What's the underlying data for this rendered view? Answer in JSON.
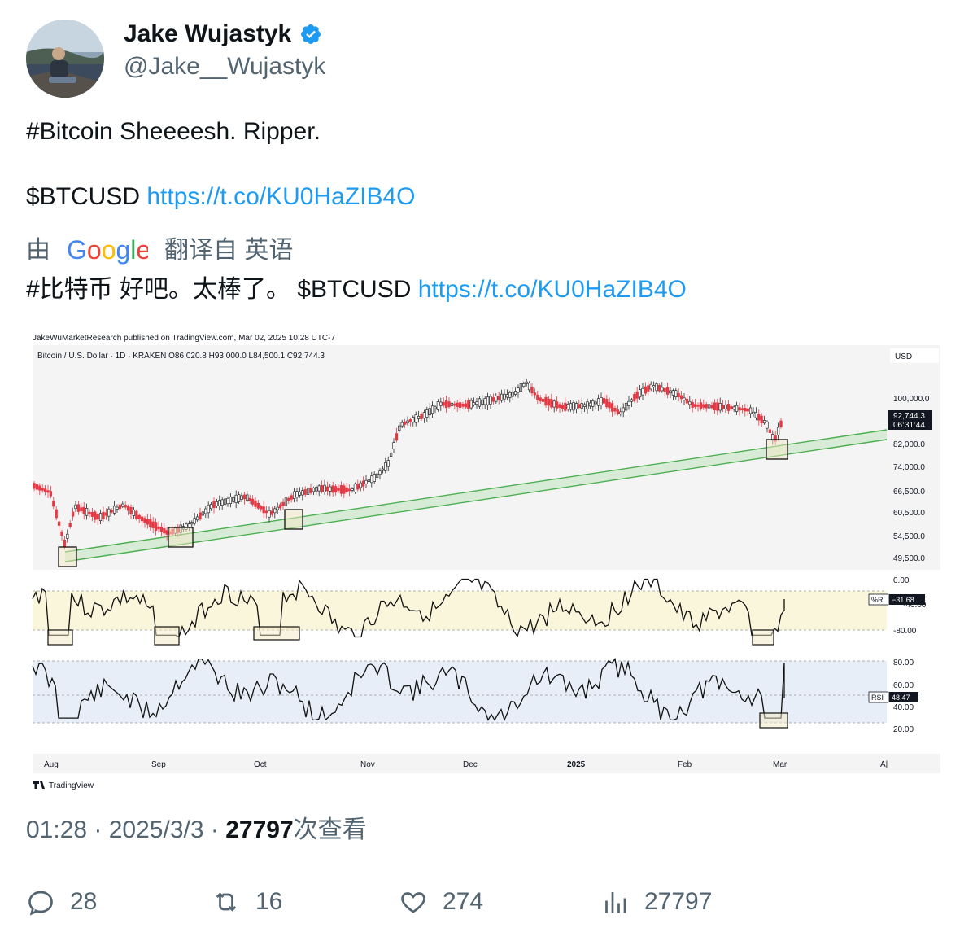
{
  "author": {
    "name": "Jake Wujastyk",
    "handle": "@Jake__Wujastyk",
    "verified": true
  },
  "tweet": {
    "line1": "#Bitcoin Sheeeesh. Ripper.",
    "line2_prefix": "$BTCUSD ",
    "link": "https://t.co/KU0HaZIB4O"
  },
  "translation": {
    "by": "由",
    "provider": "Google",
    "label": "翻译自 英语",
    "text_prefix": "#比特币 好吧。太棒了。 $BTCUSD ",
    "link": "https://t.co/KU0HaZIB4O"
  },
  "chart": {
    "header": "JakeWuMarketResearch published on TradingView.com, Mar 02, 2025 10:28 UTC-7",
    "symbol_line": "Bitcoin / U.S. Dollar · 1D · KRAKEN  O86,020.8  H93,000.0  L84,500.1  C92,744.3",
    "currency": "USD",
    "price_ticks": [
      "100,000.0",
      "82,000.0",
      "74,000.0",
      "66,500.0",
      "60,500.0",
      "54,500.0",
      "49,500.0"
    ],
    "last_price": "92,744.3",
    "countdown": "06:31:44",
    "wr_ticks": [
      "0.00",
      "-80.00"
    ],
    "wr_label": "%R",
    "wr_value": "−31.68",
    "wr_partial": "-40.00",
    "rsi_ticks": [
      "80.00",
      "60.00",
      "40.00",
      "20.00"
    ],
    "rsi_label": "RSI",
    "rsi_value": "48.47",
    "months": [
      "Aug",
      "Sep",
      "Oct",
      "Nov",
      "Dec",
      "2025",
      "Feb",
      "Mar",
      "A|"
    ],
    "brand": "TradingView",
    "colors": {
      "up": "#2b2b2b",
      "down": "#e53945",
      "channel": "#4caf50",
      "wr_band": "#faf6dc",
      "rsi_band": "#e8eef8"
    }
  },
  "meta": {
    "time": "01:28",
    "date": "2025/3/3",
    "views": "27797",
    "views_label": "次查看"
  },
  "actions": {
    "replies": "28",
    "retweets": "16",
    "likes": "274",
    "views": "27797"
  }
}
